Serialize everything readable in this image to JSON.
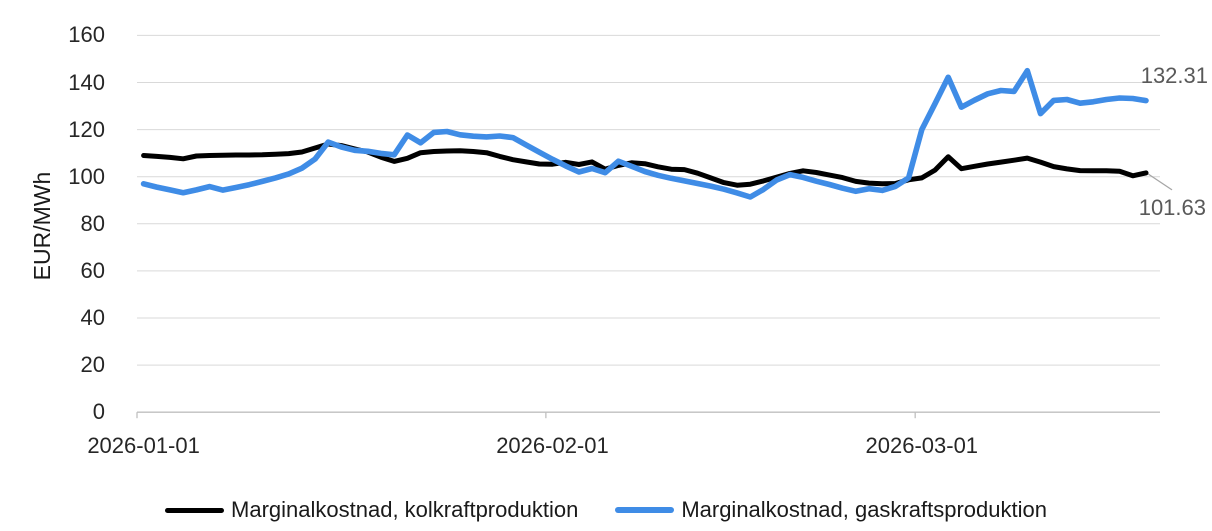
{
  "chart_data": {
    "type": "line",
    "title": "",
    "ylabel": "EUR/MWh",
    "ylim": [
      0,
      160
    ],
    "y_ticks": [
      0,
      20,
      40,
      60,
      80,
      100,
      120,
      140,
      160
    ],
    "grid": "horizontal",
    "x_start": "2026-01-01",
    "x_end": "2026-03-18",
    "frequency": "daily",
    "x_tick_labels": [
      "2026-01-01",
      "2026-02-01",
      "2026-03-01"
    ],
    "x_tick_indices": [
      0,
      31,
      59
    ],
    "legend_position": "bottom",
    "series": [
      {
        "name": "Marginalkostnad, kolkraftproduktion",
        "color": "#000000",
        "stroke_width": 5,
        "end_label": "101.63",
        "values": [
          109,
          108.6,
          108.2,
          107.6,
          108.8,
          109,
          109.1,
          109.2,
          109.2,
          109.3,
          109.5,
          109.8,
          110.5,
          112.2,
          113.9,
          113.2,
          111.8,
          110.5,
          108.3,
          106.5,
          107.8,
          110.2,
          110.7,
          110.9,
          111,
          110.7,
          110.2,
          108.6,
          107.2,
          106.3,
          105.4,
          105.3,
          106.1,
          105.2,
          106.3,
          103.2,
          104.8,
          105.9,
          105.5,
          104.2,
          103.2,
          103,
          101.5,
          99.5,
          97.5,
          96.4,
          96.8,
          98.2,
          99.8,
          101.4,
          102.5,
          101.8,
          100.7,
          99.6,
          98,
          97.3,
          97,
          97.1,
          98.7,
          99.5,
          102.8,
          108.5,
          103.4,
          104.4,
          105.4,
          106.2,
          107,
          107.9,
          106.2,
          104.3,
          103.3,
          102.6,
          102.5,
          102.5,
          102.3,
          100.4,
          101.63
        ]
      },
      {
        "name": "Marginalkostnad, gaskraftsproduktion",
        "color": "#3f8ce6",
        "stroke_width": 5.6,
        "end_label": "132.31",
        "values": [
          97,
          95.6,
          94.4,
          93.2,
          94.4,
          95.8,
          94.3,
          95.4,
          96.6,
          98,
          99.5,
          101.2,
          103.6,
          107.5,
          114.7,
          112.6,
          111.2,
          110.8,
          109.9,
          109.3,
          117.7,
          114.4,
          118.8,
          119.2,
          117.8,
          117.2,
          116.9,
          117.3,
          116.6,
          113.5,
          110.4,
          107.4,
          104.6,
          102,
          103.5,
          101.7,
          106.6,
          104.4,
          102.2,
          100.6,
          99.3,
          98.2,
          97.1,
          96,
          94.7,
          93.1,
          91.4,
          94.6,
          98.6,
          100.9,
          99.7,
          98.1,
          96.7,
          95.1,
          93.8,
          94.9,
          94.2,
          95.9,
          99.5,
          120,
          131,
          142.2,
          129.5,
          132.5,
          135.2,
          136.6,
          136.2,
          145,
          126.8,
          132.4,
          132.8,
          131.2,
          131.8,
          132.8,
          133.4,
          133.2,
          132.31
        ]
      }
    ]
  },
  "colors": {
    "gridline": "#d9d9d9",
    "axis_line": "#bfbfbf",
    "tick_text": "#262626",
    "end_label_text": "#595959",
    "leader_line": "#a6a6a6",
    "background": "#ffffff"
  }
}
